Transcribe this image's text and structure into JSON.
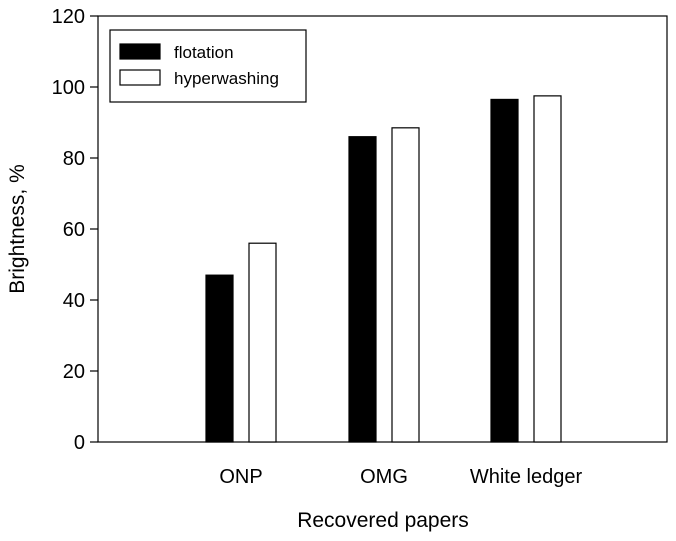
{
  "chart_data": {
    "type": "bar",
    "categories": [
      "ONP",
      "OMG",
      "White ledger"
    ],
    "series": [
      {
        "name": "flotation",
        "values": [
          47,
          86,
          96.5
        ],
        "fill": "#000000"
      },
      {
        "name": "hyperwashing",
        "values": [
          56,
          88.5,
          97.5
        ],
        "fill": "#ffffff"
      }
    ],
    "xlabel": "Recovered papers",
    "ylabel": "Brightness, %",
    "ylim": [
      0,
      120
    ],
    "yticks": [
      0,
      20,
      40,
      60,
      80,
      100,
      120
    ],
    "grid": false,
    "legend_position": "top-left"
  }
}
